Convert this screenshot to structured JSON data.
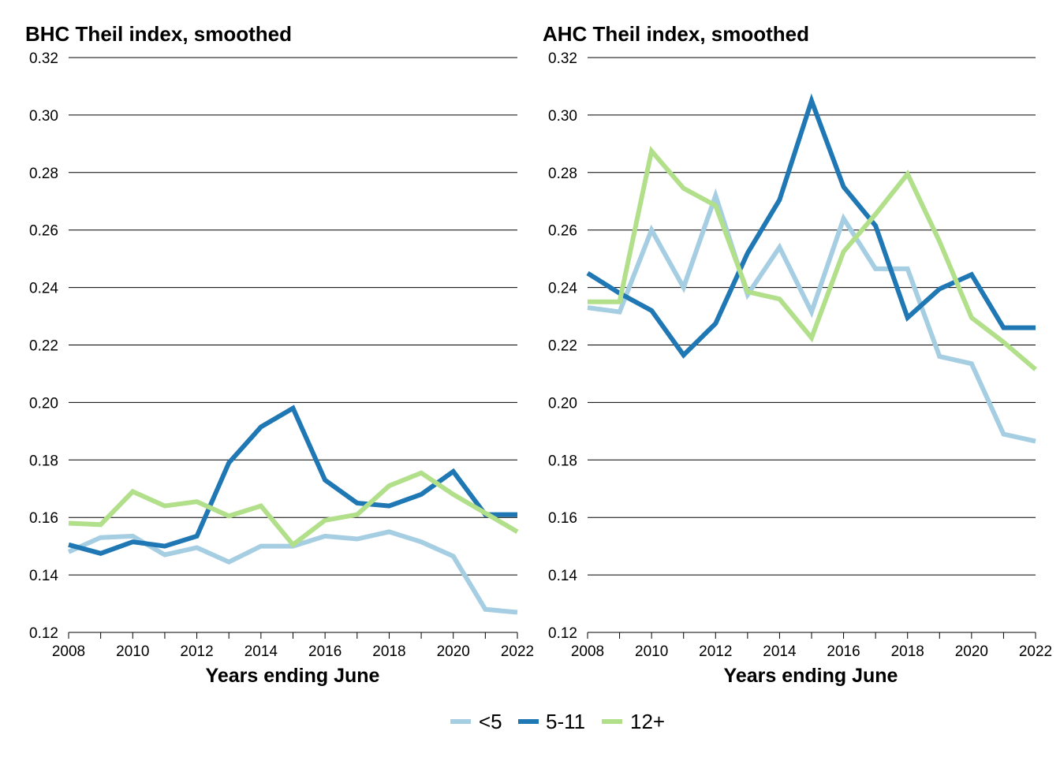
{
  "legend": [
    {
      "label": "<5",
      "color": "#a6cee3"
    },
    {
      "label": "5-11",
      "color": "#1f78b4"
    },
    {
      "label": "12+",
      "color": "#b2df8a"
    }
  ],
  "chart_data": [
    {
      "type": "line",
      "title": "BHC Theil index, smoothed",
      "xlabel": "Years ending June",
      "ylabel": "",
      "xlim": [
        2008,
        2022
      ],
      "ylim": [
        0.12,
        0.32
      ],
      "xticks": [
        "2008",
        "2010",
        "2012",
        "2014",
        "2016",
        "2018",
        "2020",
        "2022"
      ],
      "yticks": [
        "0.12",
        "0.14",
        "0.16",
        "0.18",
        "0.20",
        "0.22",
        "0.24",
        "0.26",
        "0.28",
        "0.30",
        "0.32"
      ],
      "grid": "horizontal",
      "x": [
        2008,
        2009,
        2010,
        2011,
        2012,
        2013,
        2014,
        2015,
        2016,
        2017,
        2018,
        2019,
        2020,
        2021,
        2022
      ],
      "series": [
        {
          "name": "<5",
          "color": "#a6cee3",
          "values": [
            0.148,
            0.153,
            0.1535,
            0.147,
            0.1495,
            0.1445,
            0.15,
            0.15,
            0.1535,
            0.1525,
            0.155,
            0.1515,
            0.1465,
            0.128,
            0.127
          ]
        },
        {
          "name": "5-11",
          "color": "#1f78b4",
          "values": [
            0.1505,
            0.1475,
            0.1515,
            0.15,
            0.1535,
            0.179,
            0.1915,
            0.198,
            0.173,
            0.165,
            0.164,
            0.168,
            0.176,
            0.161,
            0.161
          ]
        },
        {
          "name": "12+",
          "color": "#b2df8a",
          "values": [
            0.158,
            0.1575,
            0.169,
            0.164,
            0.1655,
            0.1605,
            0.164,
            0.1505,
            0.159,
            0.161,
            0.171,
            0.1755,
            0.168,
            0.1615,
            0.155
          ]
        }
      ]
    },
    {
      "type": "line",
      "title": "AHC Theil index, smoothed",
      "xlabel": "Years ending June",
      "ylabel": "",
      "xlim": [
        2008,
        2022
      ],
      "ylim": [
        0.12,
        0.32
      ],
      "xticks": [
        "2008",
        "2010",
        "2012",
        "2014",
        "2016",
        "2018",
        "2020",
        "2022"
      ],
      "yticks": [
        "0.12",
        "0.14",
        "0.16",
        "0.18",
        "0.20",
        "0.22",
        "0.24",
        "0.26",
        "0.28",
        "0.30",
        "0.32"
      ],
      "grid": "horizontal",
      "x": [
        2008,
        2009,
        2010,
        2011,
        2012,
        2013,
        2014,
        2015,
        2016,
        2017,
        2018,
        2019,
        2020,
        2021,
        2022
      ],
      "series": [
        {
          "name": "<5",
          "color": "#a6cee3",
          "values": [
            0.233,
            0.2315,
            0.26,
            0.24,
            0.272,
            0.2375,
            0.254,
            0.2315,
            0.264,
            0.2465,
            0.2465,
            0.216,
            0.2135,
            0.189,
            0.1865
          ]
        },
        {
          "name": "5-11",
          "color": "#1f78b4",
          "values": [
            0.245,
            0.238,
            0.232,
            0.2165,
            0.2275,
            0.252,
            0.2705,
            0.305,
            0.275,
            0.2615,
            0.2295,
            0.2395,
            0.2445,
            0.226,
            0.226
          ]
        },
        {
          "name": "12+",
          "color": "#b2df8a",
          "values": [
            0.235,
            0.235,
            0.2875,
            0.2745,
            0.2685,
            0.2385,
            0.236,
            0.2225,
            0.2525,
            0.2655,
            0.2795,
            0.256,
            0.2295,
            0.221,
            0.2115
          ]
        }
      ]
    }
  ]
}
